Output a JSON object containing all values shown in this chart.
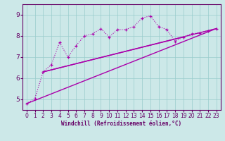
{
  "xlabel": "Windchill (Refroidissement éolien,°C)",
  "ylabel": "",
  "bg_color": "#cce8e8",
  "line_color": "#aa00aa",
  "grid_color": "#99cccc",
  "axis_color": "#660066",
  "spine_color": "#660066",
  "xlim": [
    -0.5,
    23.5
  ],
  "ylim": [
    4.5,
    9.5
  ],
  "xticks": [
    0,
    1,
    2,
    3,
    4,
    5,
    6,
    7,
    8,
    9,
    10,
    11,
    12,
    13,
    14,
    15,
    16,
    17,
    18,
    19,
    20,
    21,
    22,
    23
  ],
  "yticks": [
    5,
    6,
    7,
    8,
    9
  ],
  "dotted_x": [
    0,
    1,
    2,
    3,
    4,
    5,
    6,
    7,
    8,
    9,
    10,
    11,
    12,
    13,
    14,
    15,
    16,
    17,
    18,
    19,
    20,
    21,
    22,
    23
  ],
  "dotted_y": [
    4.8,
    5.05,
    6.3,
    6.65,
    7.7,
    7.0,
    7.55,
    8.0,
    8.1,
    8.35,
    7.95,
    8.3,
    8.3,
    8.45,
    8.85,
    8.95,
    8.45,
    8.3,
    7.75,
    7.95,
    8.1,
    8.15,
    8.25,
    8.35
  ],
  "line1_x": [
    0,
    23
  ],
  "line1_y": [
    4.8,
    8.35
  ],
  "line2_x": [
    2,
    23
  ],
  "line2_y": [
    6.3,
    8.35
  ],
  "line3_x": [
    2,
    19
  ],
  "line3_y": [
    6.3,
    7.95
  ],
  "tick_fontsize": 5.5,
  "xlabel_fontsize": 5.5
}
